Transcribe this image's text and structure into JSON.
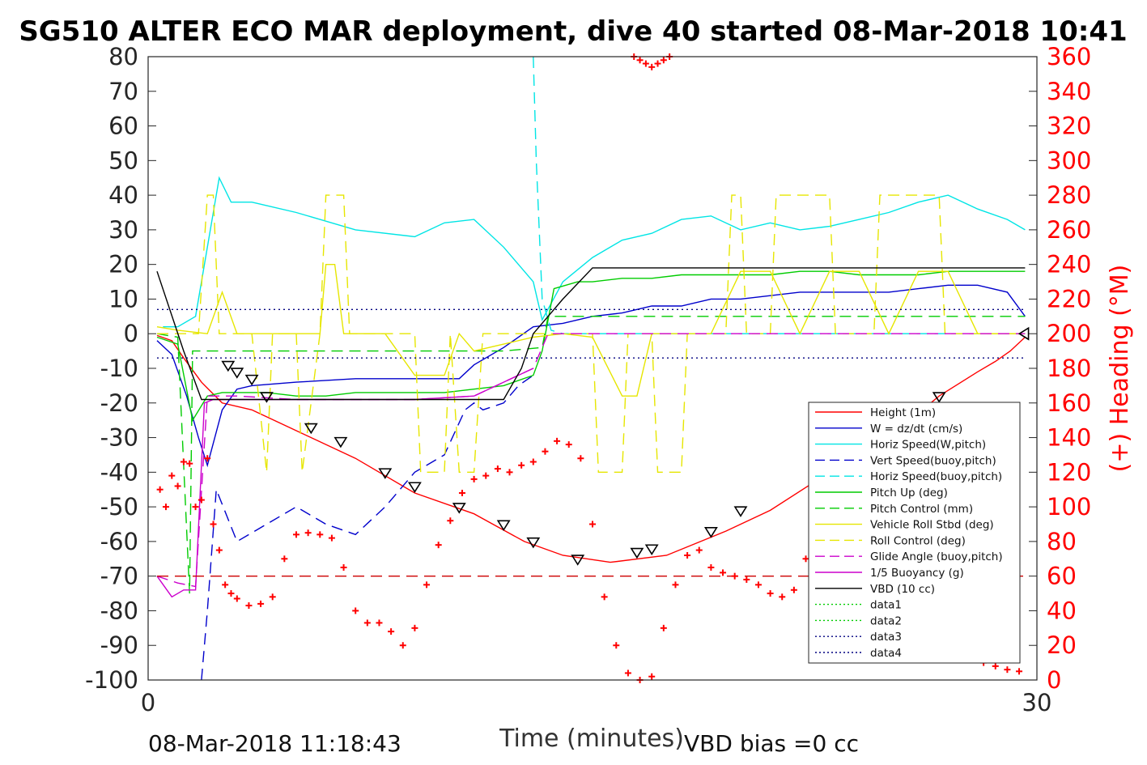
{
  "footer": {
    "start_time": "08-Mar-2018 11:18:43",
    "vbd_bias": "VBD bias =0 cc"
  },
  "chart_data": {
    "type": "line",
    "title": "SG510 ALTER ECO MAR deployment, dive 40 started 08-Mar-2018 10:41",
    "xlabel": "Time (minutes)",
    "ylabel": "",
    "y2label": "(+) Heading (°M)",
    "xlim": [
      0,
      30
    ],
    "ylim": [
      -100,
      80
    ],
    "y2lim": [
      0,
      360
    ],
    "x_ticks": [
      "0",
      "30"
    ],
    "y_ticks": [
      "80",
      "70",
      "60",
      "50",
      "40",
      "30",
      "20",
      "10",
      "0",
      "-10",
      "-20",
      "-30",
      "-40",
      "-50",
      "-60",
      "-70",
      "-80",
      "-90",
      "-100"
    ],
    "y2_ticks": [
      "360",
      "340",
      "320",
      "300",
      "280",
      "260",
      "240",
      "220",
      "200",
      "180",
      "160",
      "140",
      "120",
      "100",
      "80",
      "60",
      "40",
      "20",
      "0"
    ],
    "grid": false,
    "legend_position": "bottom-right",
    "colors": {
      "height": "#ff0000",
      "w": "#0000cc",
      "horiz_speed": "#00e5e5",
      "pitch": "#00cc00",
      "roll": "#e6e600",
      "glide": "#cc00cc",
      "vbd": "#000000",
      "heading": "#ff0000",
      "dotted_blue": "#000080",
      "dotted_green": "#00cc00"
    },
    "series": [
      {
        "name": "Height (1m)",
        "key": "height",
        "style": "solid",
        "color": "#ff0000",
        "x": [
          0.3,
          0.8,
          1.2,
          1.8,
          2.5,
          3.5,
          5,
          7,
          9,
          11,
          12.7,
          14,
          15.6,
          17.5,
          19.5,
          21,
          23,
          25,
          26.7,
          28,
          28.6,
          29.1,
          29.6
        ],
        "y": [
          -0.5,
          -2,
          -7,
          -14,
          -20,
          -22,
          -28,
          -36,
          -46,
          -52,
          -60,
          -64,
          -66,
          -64,
          -57,
          -51,
          -40,
          -30,
          -18,
          -11,
          -8,
          -5,
          -1
        ]
      },
      {
        "name": "W = dz/dt (cm/s)",
        "key": "w",
        "style": "solid",
        "color": "#0000cc",
        "x": [
          0.3,
          0.8,
          1.3,
          1.7,
          2.0,
          2.5,
          3.0,
          3.5,
          5,
          7,
          9,
          10.5,
          11,
          12,
          13,
          14,
          15,
          16,
          17,
          18,
          19,
          20,
          21,
          22,
          23,
          24,
          25,
          26,
          27,
          28,
          29,
          29.6
        ],
        "y": [
          -2,
          -6,
          -18,
          -30,
          -38,
          -22,
          -16,
          -15,
          -14,
          -13,
          -13,
          -13,
          -9,
          -4,
          2,
          3,
          5,
          6,
          8,
          8,
          10,
          10,
          11,
          12,
          12,
          12,
          12,
          13,
          14,
          14,
          12,
          5
        ]
      },
      {
        "name": "Horiz Speed(W,pitch)",
        "key": "horiz_w",
        "style": "solid",
        "color": "#00e5e5",
        "x": [
          0.5,
          1.0,
          1.6,
          2.0,
          2.4,
          2.8,
          3.5,
          5,
          7,
          9,
          10,
          11,
          12,
          12.5,
          13,
          13.3,
          14,
          15,
          16,
          17,
          18,
          19,
          20,
          21,
          22,
          23,
          24,
          25,
          26,
          27,
          28,
          29,
          29.6
        ],
        "y": [
          2,
          2,
          5,
          25,
          45,
          38,
          38,
          35,
          30,
          28,
          32,
          33,
          25,
          20,
          15,
          4,
          15,
          22,
          27,
          29,
          33,
          34,
          30,
          32,
          30,
          31,
          33,
          35,
          38,
          40,
          36,
          33,
          30
        ]
      },
      {
        "name": "Vert Speed(buoy,pitch)",
        "key": "vert_buoy",
        "style": "dashed",
        "color": "#0000cc",
        "x": [
          1.8,
          2.0,
          2.3,
          3.0,
          4.0,
          5.0,
          6.0,
          7.0,
          8.0,
          9.0,
          10.0,
          10.7,
          11.0,
          11.3,
          12.0,
          12.5,
          13.0
        ],
        "y": [
          -100,
          -80,
          -45,
          -60,
          -55,
          -50,
          -55,
          -58,
          -50,
          -40,
          -35,
          -22,
          -20,
          -22,
          -20,
          -15,
          -12
        ]
      },
      {
        "name": "Horiz Speed(buoy,pitch)",
        "key": "horiz_buoy",
        "style": "dashed",
        "color": "#00e5e5",
        "x": [
          13.0,
          13.1,
          13.3,
          13.6,
          14,
          16,
          18,
          20,
          22,
          24,
          26,
          28,
          29.5
        ],
        "y": [
          80,
          50,
          10,
          1,
          0,
          0,
          0,
          0,
          0,
          0,
          0,
          0,
          0
        ]
      },
      {
        "name": "Pitch Up (deg)",
        "key": "pitch_up",
        "style": "solid",
        "color": "#00cc00",
        "x": [
          0.3,
          1.0,
          1.5,
          2.0,
          2.5,
          3.0,
          4.0,
          5.0,
          6.0,
          7.0,
          8.0,
          9.0,
          10.0,
          11.0,
          12.0,
          13.0,
          13.3,
          13.7,
          14.5,
          15.0,
          16.0,
          17.0,
          18.0,
          19.0,
          20.0,
          21.0,
          22.0,
          23.0,
          24.0,
          25.0,
          26.0,
          27.0,
          28.0,
          29.0,
          29.6
        ],
        "y": [
          -1,
          -3,
          -25,
          -18,
          -17,
          -17,
          -17,
          -18,
          -18,
          -17,
          -17,
          -17,
          -17,
          -16,
          -15,
          -12,
          -5,
          13,
          15,
          15,
          16,
          16,
          17,
          17,
          17,
          17,
          18,
          18,
          17,
          17,
          17,
          18,
          18,
          18,
          18
        ]
      },
      {
        "name": "Pitch Control (mm)",
        "key": "pitch_ctrl",
        "style": "dashed",
        "color": "#00cc00",
        "x": [
          0.3,
          1.0,
          1.4,
          1.5,
          3,
          6,
          9,
          12,
          13.3,
          13.5,
          16,
          20,
          25,
          29.6
        ],
        "y": [
          0,
          -1,
          -75,
          -5,
          -5,
          -5,
          -5,
          -5,
          -4,
          5,
          5,
          5,
          5,
          5
        ]
      },
      {
        "name": "Vehicle Roll Stbd (deg)",
        "key": "roll",
        "style": "solid",
        "color": "#e6e600",
        "x": [
          0.3,
          1.0,
          2.0,
          2.5,
          3.0,
          4.0,
          5.0,
          5.5,
          5.8,
          6.0,
          6.3,
          6.6,
          7.0,
          8.0,
          9.0,
          10.0,
          10.5,
          11.0,
          12.0,
          13.0,
          14.0,
          15.0,
          16.0,
          16.5,
          17.0,
          18.0,
          19.0,
          20.0,
          21.0,
          22.0,
          23.0,
          24.0,
          25.0,
          26.0,
          27.0,
          28.0,
          29.0,
          29.6
        ],
        "y": [
          2,
          1,
          0,
          12,
          0,
          0,
          0,
          0,
          0,
          20,
          20,
          0,
          0,
          0,
          -12,
          -12,
          0,
          -5,
          -3,
          -1,
          0,
          -1,
          -18,
          -18,
          0,
          0,
          0,
          18,
          18,
          0,
          18,
          18,
          0,
          18,
          18,
          0,
          0,
          0
        ]
      },
      {
        "name": "Roll Control (deg)",
        "key": "roll_ctrl",
        "style": "dashed",
        "color": "#e6e600",
        "x": [
          0.3,
          1.7,
          2.0,
          2.2,
          2.4,
          3.5,
          4.0,
          4.2,
          5.0,
          5.2,
          5.8,
          6.0,
          6.6,
          6.8,
          7.0,
          7.5,
          8.5,
          9.0,
          9.2,
          10.0,
          10.2,
          10.5,
          11.0,
          11.3,
          11.6,
          12,
          13,
          13.5,
          14,
          15,
          15.2,
          16,
          16.2,
          17,
          17.2,
          18,
          18.2,
          19.5,
          19.7,
          20,
          20.2,
          21,
          21.2,
          23,
          23.2,
          24.5,
          24.7,
          26.7,
          26.9,
          27.5,
          29.6
        ],
        "y": [
          0,
          0,
          40,
          40,
          0,
          0,
          -40,
          0,
          0,
          -40,
          0,
          40,
          40,
          0,
          0,
          0,
          0,
          0,
          -40,
          -40,
          0,
          -40,
          -40,
          0,
          0,
          0,
          0,
          0,
          0,
          0,
          -40,
          -40,
          0,
          0,
          -40,
          -40,
          0,
          0,
          40,
          40,
          0,
          0,
          40,
          40,
          0,
          0,
          40,
          40,
          0,
          0,
          0
        ]
      },
      {
        "name": "Glide Angle (buoy,pitch)",
        "key": "glide",
        "style": "dashed",
        "color": "#cc00cc",
        "x": [
          0.3,
          1.0,
          1.6,
          2.0,
          3,
          5,
          7,
          9,
          11,
          12,
          13,
          13.5,
          14,
          16,
          18,
          20,
          22,
          24,
          26,
          28,
          29.6
        ],
        "y": [
          -70,
          -72,
          -73,
          -18,
          -18,
          -19,
          -19,
          -19,
          -18,
          -14,
          -10,
          0,
          0,
          0,
          0,
          0,
          0,
          0,
          0,
          0,
          0
        ]
      },
      {
        "name": "1/5 Buoyancy (g)",
        "key": "buoyancy",
        "style": "solid",
        "color": "#cc00cc",
        "x": [
          0.3,
          0.8,
          1.2,
          1.6,
          1.9,
          2.2,
          3,
          5,
          7,
          9,
          11,
          12,
          13
        ],
        "y": [
          -70,
          -76,
          -74,
          -74,
          -20,
          -19,
          -19,
          -19,
          -19,
          -19,
          -18,
          -14,
          -10
        ]
      },
      {
        "name": "VBD (10 cc)",
        "key": "vbd",
        "style": "solid",
        "color": "#000000",
        "x": [
          0.3,
          1.2,
          1.8,
          3,
          5,
          7,
          9,
          11,
          12,
          12.6,
          13,
          14,
          15,
          16,
          17,
          18,
          20,
          22,
          24,
          26,
          28,
          29.6
        ],
        "y": [
          18,
          -5,
          -19,
          -19,
          -19,
          -19,
          -19,
          -19,
          -19,
          -10,
          0,
          10,
          19,
          19,
          19,
          19,
          19,
          19,
          19,
          19,
          19,
          19
        ]
      },
      {
        "name": "data1",
        "key": "data1",
        "style": "dotted",
        "color": "#00cc00",
        "x": [],
        "y": []
      },
      {
        "name": "data2",
        "key": "data2",
        "style": "dotted",
        "color": "#00cc00",
        "x": [],
        "y": []
      },
      {
        "name": "data3",
        "key": "data3",
        "style": "dotted",
        "color": "#000080",
        "x": [
          0.3,
          29.6
        ],
        "y": [
          7,
          7
        ]
      },
      {
        "name": "data4",
        "key": "data4",
        "style": "dotted",
        "color": "#000080",
        "x": [
          0.3,
          29.6
        ],
        "y": [
          -7,
          -7
        ]
      }
    ],
    "heading_series": {
      "axis": "right",
      "marker": "plus",
      "color": "#ff0000",
      "x": [
        0.4,
        0.6,
        0.8,
        1.0,
        1.2,
        1.4,
        1.6,
        1.8,
        2.0,
        2.2,
        2.4,
        2.6,
        2.8,
        3.0,
        3.4,
        3.8,
        4.2,
        4.6,
        5.0,
        5.4,
        5.8,
        6.2,
        6.6,
        7.0,
        7.4,
        7.8,
        8.2,
        8.6,
        9.0,
        9.4,
        9.8,
        10.2,
        10.6,
        11.0,
        11.4,
        11.8,
        12.2,
        12.6,
        13.0,
        13.4,
        13.8,
        14.2,
        14.6,
        15.0,
        15.4,
        15.8,
        16.2,
        16.6,
        17.0,
        17.4,
        17.8,
        18.2,
        18.6,
        19.0,
        19.4,
        19.8,
        20.2,
        20.6,
        21.0,
        21.4,
        21.8,
        22.2,
        22.6,
        23.0,
        23.4,
        23.8,
        24.2,
        24.6,
        25.0,
        25.4,
        25.8,
        26.2,
        26.6,
        27.0,
        27.4,
        27.8,
        28.2,
        28.6,
        29.0,
        29.4
      ],
      "y": [
        110,
        100,
        118,
        112,
        126,
        125,
        100,
        104,
        128,
        90,
        75,
        55,
        50,
        47,
        43,
        44,
        48,
        70,
        84,
        85,
        84,
        82,
        65,
        40,
        33,
        33,
        28,
        20,
        30,
        55,
        78,
        92,
        108,
        116,
        118,
        122,
        120,
        124,
        126,
        132,
        138,
        136,
        128,
        90,
        48,
        20,
        4,
        0,
        2,
        30,
        55,
        72,
        75,
        65,
        62,
        60,
        58,
        55,
        50,
        48,
        52,
        70,
        75,
        75,
        72,
        71,
        68,
        50,
        42,
        30,
        26,
        24,
        20,
        18,
        16,
        14,
        10,
        8,
        6,
        5
      ],
      "x_top": [
        16.4,
        16.6,
        16.8,
        17.0,
        17.2,
        17.4,
        17.6
      ],
      "y_top": [
        360,
        358,
        356,
        354,
        356,
        358,
        360
      ]
    },
    "reference_lines": [
      {
        "axis": "right",
        "y": 60,
        "color": "#cc0000",
        "style": "dashed",
        "x_range": [
          0.3,
          29.6
        ]
      }
    ],
    "markers": [
      {
        "kind": "triangle-down",
        "x": [
          2.7,
          3.0,
          3.5,
          4.0,
          5.5,
          6.5,
          8.0,
          9.0,
          10.5,
          12.0,
          13.0,
          14.5,
          16.5,
          17.0,
          19.0,
          20.0,
          26.3,
          26.7
        ],
        "y": [
          -9,
          -11,
          -13,
          -18,
          -27,
          -31,
          -40,
          -44,
          -50,
          -55,
          -60,
          -65,
          -63,
          -62,
          -57,
          -51,
          -23,
          -18
        ]
      },
      {
        "kind": "triangle-left",
        "x": [
          29.6
        ],
        "y": [
          0
        ]
      }
    ]
  }
}
